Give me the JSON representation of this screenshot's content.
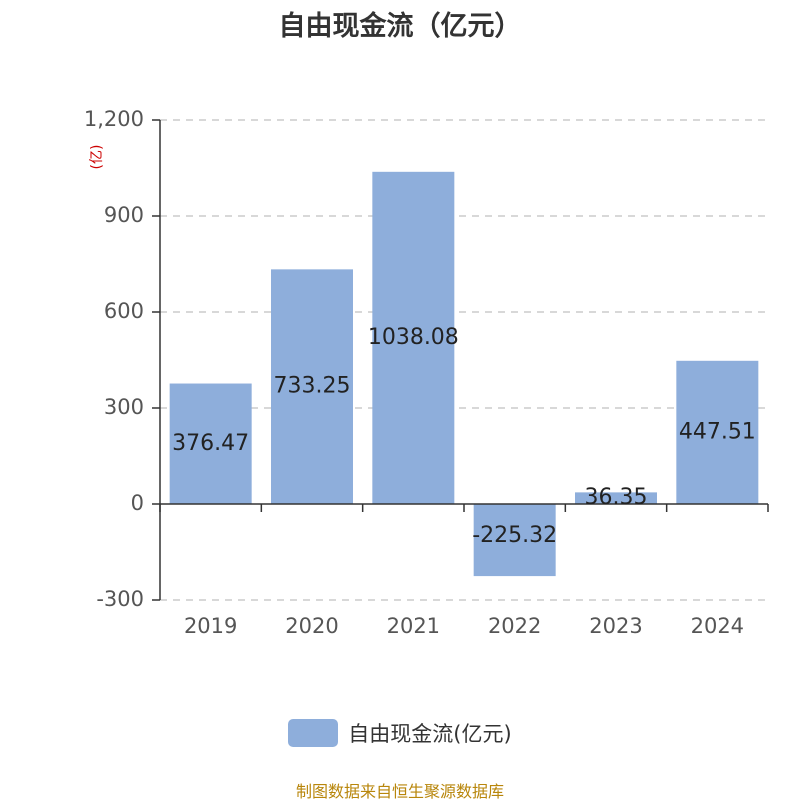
{
  "chart_data": {
    "type": "bar",
    "title": "自由现金流（亿元）",
    "unit_label": "(亿)",
    "categories": [
      "2019",
      "2020",
      "2021",
      "2022",
      "2023",
      "2024"
    ],
    "series": [
      {
        "name": "自由现金流(亿元)",
        "values": [
          376.47,
          733.25,
          1038.08,
          -225.32,
          36.35,
          447.51
        ]
      }
    ],
    "data_labels": [
      "376.47",
      "733.25",
      "1038.08",
      "-225.32",
      "36.35",
      "447.51"
    ],
    "yticks": [
      1200,
      900,
      600,
      300,
      0,
      -300
    ],
    "ytick_labels": [
      "1,200",
      "900",
      "600",
      "300",
      "0",
      "-300"
    ],
    "ylim": [
      -300,
      1200
    ],
    "grid": true,
    "legend_position": "bottom",
    "bar_color": "#8eaedb",
    "unit_color": "#cc0000"
  },
  "footer": {
    "source": "制图数据来自恒生聚源数据库"
  }
}
